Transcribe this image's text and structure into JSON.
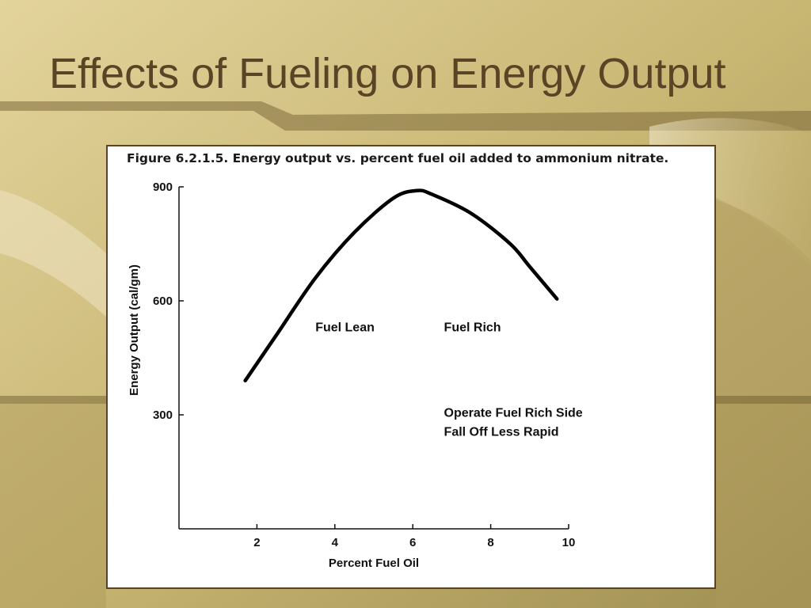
{
  "slide": {
    "title": "Effects of Fueling on Energy Output"
  },
  "colors": {
    "title": "#5a4426",
    "background": "#c9b877",
    "frame_border": "#5a4426",
    "curve": "#000000"
  },
  "chart_data": {
    "type": "line",
    "title": "Figure 6.2.1.5. Energy output vs. percent fuel oil added to ammonium nitrate.",
    "xlabel": "Percent Fuel Oil",
    "ylabel": "Energy Output (cal/gm)",
    "xlim": [
      0,
      10
    ],
    "ylim": [
      0,
      900
    ],
    "x_ticks": [
      2,
      4,
      6,
      8,
      10
    ],
    "y_ticks": [
      300,
      600,
      900
    ],
    "grid": false,
    "series": [
      {
        "x": [
          1.7,
          2.5,
          3.5,
          4.5,
          5.5,
          6.1,
          6.5,
          7.5,
          8.5,
          9.0,
          9.7
        ],
        "y": [
          390,
          510,
          660,
          780,
          870,
          890,
          880,
          830,
          750,
          690,
          605
        ]
      }
    ],
    "annotations": [
      {
        "text": "Fuel Lean",
        "x": 3.5,
        "y": 520
      },
      {
        "text": "Fuel Rich",
        "x": 6.8,
        "y": 520
      },
      {
        "text": "Operate Fuel Rich Side",
        "x": 6.8,
        "y": 295
      },
      {
        "text": "Fall Off Less Rapid",
        "x": 6.8,
        "y": 245
      }
    ]
  }
}
